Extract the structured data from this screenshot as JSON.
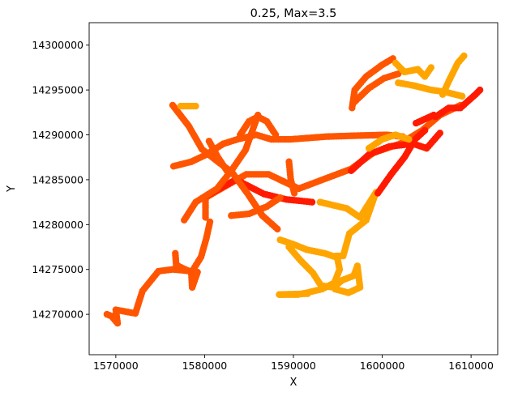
{
  "chart_data": {
    "type": "scatter",
    "title": "0.25, Max=3.5",
    "xlabel": "X",
    "ylabel": "Y",
    "xlim": [
      1567000,
      1613000
    ],
    "ylim": [
      14265500,
      14302500
    ],
    "grid": false,
    "legend": "none",
    "x_ticks": [
      1570000,
      1580000,
      1590000,
      1600000,
      1610000
    ],
    "x_tick_labels": [
      "1570000",
      "1580000",
      "1590000",
      "1600000",
      "1610000"
    ],
    "y_ticks": [
      14270000,
      14275000,
      14280000,
      14285000,
      14290000,
      14295000,
      14300000
    ],
    "y_tick_labels": [
      "14270000",
      "14275000",
      "14280000",
      "14285000",
      "14290000",
      "14295000",
      "14300000"
    ],
    "colors": {
      "line": "#ffff33",
      "low": "#ffa500",
      "mid": "#ff5500",
      "high": "#ff1a00"
    },
    "tracks": [
      {
        "points": [
          [
            1569000,
            14270000
          ],
          [
            1569500,
            14269800
          ],
          [
            1570200,
            14269000
          ],
          [
            1570000,
            14270500
          ],
          [
            1572200,
            14270100
          ],
          [
            1573000,
            14272600
          ],
          [
            1574800,
            14274800
          ],
          [
            1576400,
            14275000
          ],
          [
            1578600,
            14274800
          ],
          [
            1579600,
            14276400
          ],
          [
            1580200,
            14278500
          ],
          [
            1580600,
            14280300
          ]
        ],
        "level": "mid"
      },
      {
        "points": [
          [
            1576700,
            14276800
          ],
          [
            1576800,
            14275500
          ],
          [
            1577600,
            14275100
          ],
          [
            1578500,
            14274700
          ],
          [
            1578600,
            14273000
          ],
          [
            1579200,
            14274700
          ]
        ],
        "level": "mid"
      },
      {
        "points": [
          [
            1580100,
            14280800
          ],
          [
            1580100,
            14283000
          ],
          [
            1582200,
            14284200
          ],
          [
            1584700,
            14285600
          ],
          [
            1587200,
            14285600
          ],
          [
            1590600,
            14284000
          ],
          [
            1596500,
            14286200
          ],
          [
            1599000,
            14288000
          ],
          [
            1602000,
            14289000
          ],
          [
            1604500,
            14290500
          ],
          [
            1606500,
            14292200
          ],
          [
            1608800,
            14293300
          ]
        ],
        "level": "mid"
      },
      {
        "points": [
          [
            1580200,
            14283200
          ],
          [
            1583500,
            14285000
          ],
          [
            1586700,
            14283400
          ],
          [
            1589200,
            14282800
          ],
          [
            1591200,
            14282600
          ],
          [
            1592100,
            14282500
          ]
        ],
        "level": "high"
      },
      {
        "points": [
          [
            1577700,
            14280500
          ],
          [
            1579000,
            14282500
          ],
          [
            1581400,
            14284000
          ],
          [
            1583000,
            14286000
          ],
          [
            1584600,
            14288300
          ],
          [
            1586000,
            14292200
          ]
        ],
        "level": "mid"
      },
      {
        "points": [
          [
            1576400,
            14293300
          ],
          [
            1578200,
            14291000
          ],
          [
            1579700,
            14288400
          ],
          [
            1581500,
            14287000
          ],
          [
            1583100,
            14285800
          ],
          [
            1584800,
            14283500
          ],
          [
            1586500,
            14281000
          ],
          [
            1588200,
            14279500
          ]
        ],
        "level": "mid"
      },
      {
        "points": [
          [
            1576500,
            14286500
          ],
          [
            1578500,
            14287000
          ],
          [
            1580200,
            14287800
          ],
          [
            1582100,
            14289000
          ],
          [
            1583700,
            14289500
          ],
          [
            1585800,
            14290000
          ],
          [
            1587500,
            14289500
          ],
          [
            1589700,
            14289500
          ],
          [
            1593700,
            14289800
          ],
          [
            1596800,
            14289900
          ],
          [
            1600500,
            14290000
          ],
          [
            1602300,
            14289800
          ]
        ],
        "level": "mid"
      },
      {
        "points": [
          [
            1577300,
            14293200
          ],
          [
            1579000,
            14293200
          ]
        ],
        "level": "low"
      },
      {
        "points": [
          [
            1580500,
            14289300
          ],
          [
            1581500,
            14287500
          ],
          [
            1582500,
            14286000
          ]
        ],
        "level": "mid"
      },
      {
        "points": [
          [
            1584000,
            14290000
          ],
          [
            1585000,
            14291500
          ],
          [
            1586000,
            14292000
          ],
          [
            1587000,
            14291500
          ],
          [
            1588000,
            14290000
          ]
        ],
        "level": "mid"
      },
      {
        "points": [
          [
            1589500,
            14287000
          ],
          [
            1589700,
            14285000
          ],
          [
            1590100,
            14283500
          ]
        ],
        "level": "mid"
      },
      {
        "points": [
          [
            1583000,
            14281000
          ],
          [
            1585000,
            14281200
          ],
          [
            1587000,
            14282000
          ],
          [
            1588500,
            14283000
          ]
        ],
        "level": "mid"
      },
      {
        "points": [
          [
            1593000,
            14282500
          ],
          [
            1596000,
            14281800
          ],
          [
            1597500,
            14280800
          ],
          [
            1599300,
            14283600
          ],
          [
            1598200,
            14280500
          ],
          [
            1596300,
            14279000
          ],
          [
            1595600,
            14276500
          ],
          [
            1594800,
            14276500
          ]
        ],
        "level": "low"
      },
      {
        "points": [
          [
            1588500,
            14278300
          ],
          [
            1590000,
            14277800
          ],
          [
            1591500,
            14277200
          ],
          [
            1593500,
            14276800
          ],
          [
            1595000,
            14276300
          ]
        ],
        "level": "low"
      },
      {
        "points": [
          [
            1589500,
            14277500
          ],
          [
            1590800,
            14276000
          ],
          [
            1592200,
            14274600
          ],
          [
            1593100,
            14273200
          ],
          [
            1594500,
            14273000
          ],
          [
            1595500,
            14273800
          ],
          [
            1596800,
            14274300
          ],
          [
            1597200,
            14275400
          ],
          [
            1597500,
            14273000
          ],
          [
            1596200,
            14272400
          ],
          [
            1594700,
            14272800
          ]
        ],
        "level": "low"
      },
      {
        "points": [
          [
            1588600,
            14272200
          ],
          [
            1590500,
            14272200
          ],
          [
            1591500,
            14272400
          ],
          [
            1593200,
            14272800
          ],
          [
            1594600,
            14273500
          ],
          [
            1595200,
            14275000
          ],
          [
            1594900,
            14276500
          ]
        ],
        "level": "low"
      },
      {
        "points": [
          [
            1588400,
            14272200
          ],
          [
            1591600,
            14272300
          ]
        ],
        "level": "low"
      },
      {
        "points": [
          [
            1596600,
            14293000
          ],
          [
            1596900,
            14295000
          ],
          [
            1598200,
            14296500
          ],
          [
            1600000,
            14297800
          ],
          [
            1601200,
            14298500
          ]
        ],
        "level": "mid"
      },
      {
        "points": [
          [
            1596700,
            14293500
          ],
          [
            1598500,
            14295200
          ],
          [
            1600200,
            14296300
          ],
          [
            1601800,
            14296800
          ]
        ],
        "level": "mid"
      },
      {
        "points": [
          [
            1596500,
            14286000
          ],
          [
            1598500,
            14287800
          ],
          [
            1600800,
            14288700
          ],
          [
            1603500,
            14289000
          ],
          [
            1605000,
            14288500
          ],
          [
            1606500,
            14290200
          ]
        ],
        "level": "high"
      },
      {
        "points": [
          [
            1599500,
            14283500
          ],
          [
            1601000,
            14285600
          ],
          [
            1602500,
            14287500
          ],
          [
            1603700,
            14289500
          ],
          [
            1604800,
            14290500
          ]
        ],
        "level": "high"
      },
      {
        "points": [
          [
            1601500,
            14298000
          ],
          [
            1602500,
            14297000
          ],
          [
            1604000,
            14297300
          ],
          [
            1604800,
            14296500
          ],
          [
            1605500,
            14297500
          ]
        ],
        "level": "low"
      },
      {
        "points": [
          [
            1601800,
            14295800
          ],
          [
            1603500,
            14295500
          ],
          [
            1605500,
            14295000
          ],
          [
            1607000,
            14294800
          ],
          [
            1609000,
            14294300
          ]
        ],
        "level": "low"
      },
      {
        "points": [
          [
            1606800,
            14294500
          ],
          [
            1607500,
            14296000
          ],
          [
            1608500,
            14298000
          ],
          [
            1609200,
            14298800
          ]
        ],
        "level": "low"
      },
      {
        "points": [
          [
            1606000,
            14292000
          ],
          [
            1607500,
            14293000
          ],
          [
            1608800,
            14293000
          ],
          [
            1610500,
            14294500
          ],
          [
            1611000,
            14295000
          ]
        ],
        "level": "high"
      },
      {
        "points": [
          [
            1603800,
            14291300
          ],
          [
            1605800,
            14292200
          ]
        ],
        "level": "high"
      },
      {
        "points": [
          [
            1598500,
            14288500
          ],
          [
            1600000,
            14289500
          ],
          [
            1601500,
            14290000
          ],
          [
            1603000,
            14289500
          ]
        ],
        "level": "low"
      }
    ]
  }
}
